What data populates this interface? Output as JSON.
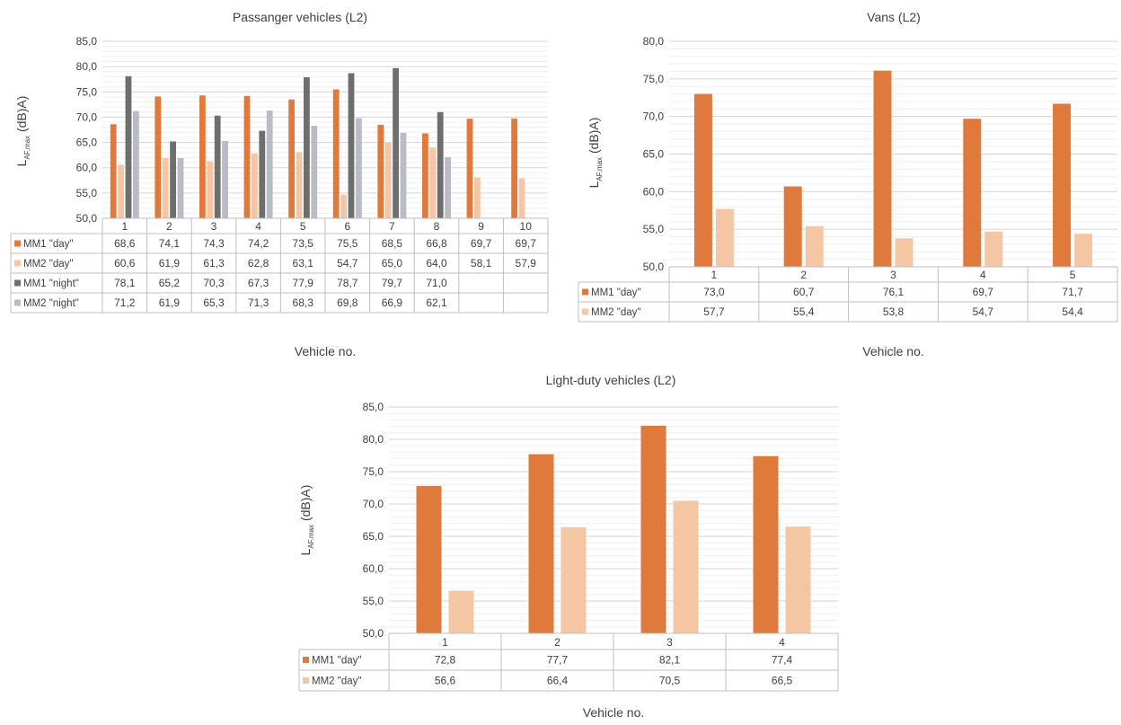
{
  "chart_data": [
    {
      "type": "bar",
      "title": "Passanger vehicles (L2)",
      "xlabel": "Vehicle no.",
      "ylabel": {
        "main": "L",
        "sub": "AF,max",
        "unit": "(dB)A)"
      },
      "ylim": [
        50,
        85
      ],
      "yticks": [
        "50,0",
        "55,0",
        "60,0",
        "65,0",
        "70,0",
        "75,0",
        "80,0",
        "85,0"
      ],
      "categories": [
        "1",
        "2",
        "3",
        "4",
        "5",
        "6",
        "7",
        "8",
        "9",
        "10"
      ],
      "grid": true,
      "legend_placement": "data-table",
      "series": [
        {
          "name": "MM1 \"day\"",
          "color": "#e07a3c",
          "values": [
            68.6,
            74.1,
            74.3,
            74.2,
            73.5,
            75.5,
            68.5,
            66.8,
            69.7,
            69.7
          ],
          "labels": [
            "68,6",
            "74,1",
            "74,3",
            "74,2",
            "73,5",
            "75,5",
            "68,5",
            "66,8",
            "69,7",
            "69,7"
          ]
        },
        {
          "name": "MM2 \"day\"",
          "color": "#f5c6a4",
          "values": [
            60.6,
            61.9,
            61.3,
            62.8,
            63.1,
            54.7,
            65.0,
            64.0,
            58.1,
            57.9
          ],
          "labels": [
            "60,6",
            "61,9",
            "61,3",
            "62,8",
            "63,1",
            "54,7",
            "65,0",
            "64,0",
            "58,1",
            "57,9"
          ]
        },
        {
          "name": "MM1 \"night\"",
          "color": "#6e6e6e",
          "values": [
            78.1,
            65.2,
            70.3,
            67.3,
            77.9,
            78.7,
            79.7,
            71.0,
            null,
            null
          ],
          "labels": [
            "78,1",
            "65,2",
            "70,3",
            "67,3",
            "77,9",
            "78,7",
            "79,7",
            "71,0",
            "",
            ""
          ]
        },
        {
          "name": "MM2 \"night\"",
          "color": "#b9bcc5",
          "values": [
            71.2,
            61.9,
            65.3,
            71.3,
            68.3,
            69.8,
            66.9,
            62.1,
            null,
            null
          ],
          "labels": [
            "71,2",
            "61,9",
            "65,3",
            "71,3",
            "68,3",
            "69,8",
            "66,9",
            "62,1",
            "",
            ""
          ]
        }
      ]
    },
    {
      "type": "bar",
      "title": "Vans (L2)",
      "xlabel": "Vehicle no.",
      "ylabel": {
        "main": "L",
        "sub": "AF,max",
        "unit": "(dB)A)"
      },
      "ylim": [
        50,
        80
      ],
      "yticks": [
        "50,0",
        "55,0",
        "60,0",
        "65,0",
        "70,0",
        "75,0",
        "80,0"
      ],
      "categories": [
        "1",
        "2",
        "3",
        "4",
        "5"
      ],
      "grid": true,
      "legend_placement": "data-table",
      "series": [
        {
          "name": "MM1 \"day\"",
          "color": "#e07a3c",
          "values": [
            73.0,
            60.7,
            76.1,
            69.7,
            71.7
          ],
          "labels": [
            "73,0",
            "60,7",
            "76,1",
            "69,7",
            "71,7"
          ]
        },
        {
          "name": "MM2 \"day\"",
          "color": "#f5c6a4",
          "values": [
            57.7,
            55.4,
            53.8,
            54.7,
            54.4
          ],
          "labels": [
            "57,7",
            "55,4",
            "53,8",
            "54,7",
            "54,4"
          ]
        }
      ]
    },
    {
      "type": "bar",
      "title": "Light-duty vehicles (L2)",
      "xlabel": "Vehicle no.",
      "ylabel": {
        "main": "L",
        "sub": "AF,max",
        "unit": "(dB)A)"
      },
      "ylim": [
        50,
        85
      ],
      "yticks": [
        "50,0",
        "55,0",
        "60,0",
        "65,0",
        "70,0",
        "75,0",
        "80,0",
        "85,0"
      ],
      "categories": [
        "1",
        "2",
        "3",
        "4"
      ],
      "grid": true,
      "legend_placement": "data-table",
      "series": [
        {
          "name": "MM1 \"day\"",
          "color": "#e07a3c",
          "values": [
            72.8,
            77.7,
            82.1,
            77.4
          ],
          "labels": [
            "72,8",
            "77,7",
            "82,1",
            "77,4"
          ]
        },
        {
          "name": "MM2 \"day\"",
          "color": "#f5c6a4",
          "values": [
            56.6,
            66.4,
            70.5,
            66.5
          ],
          "labels": [
            "56,6",
            "66,4",
            "70,5",
            "66,5"
          ]
        }
      ]
    }
  ]
}
